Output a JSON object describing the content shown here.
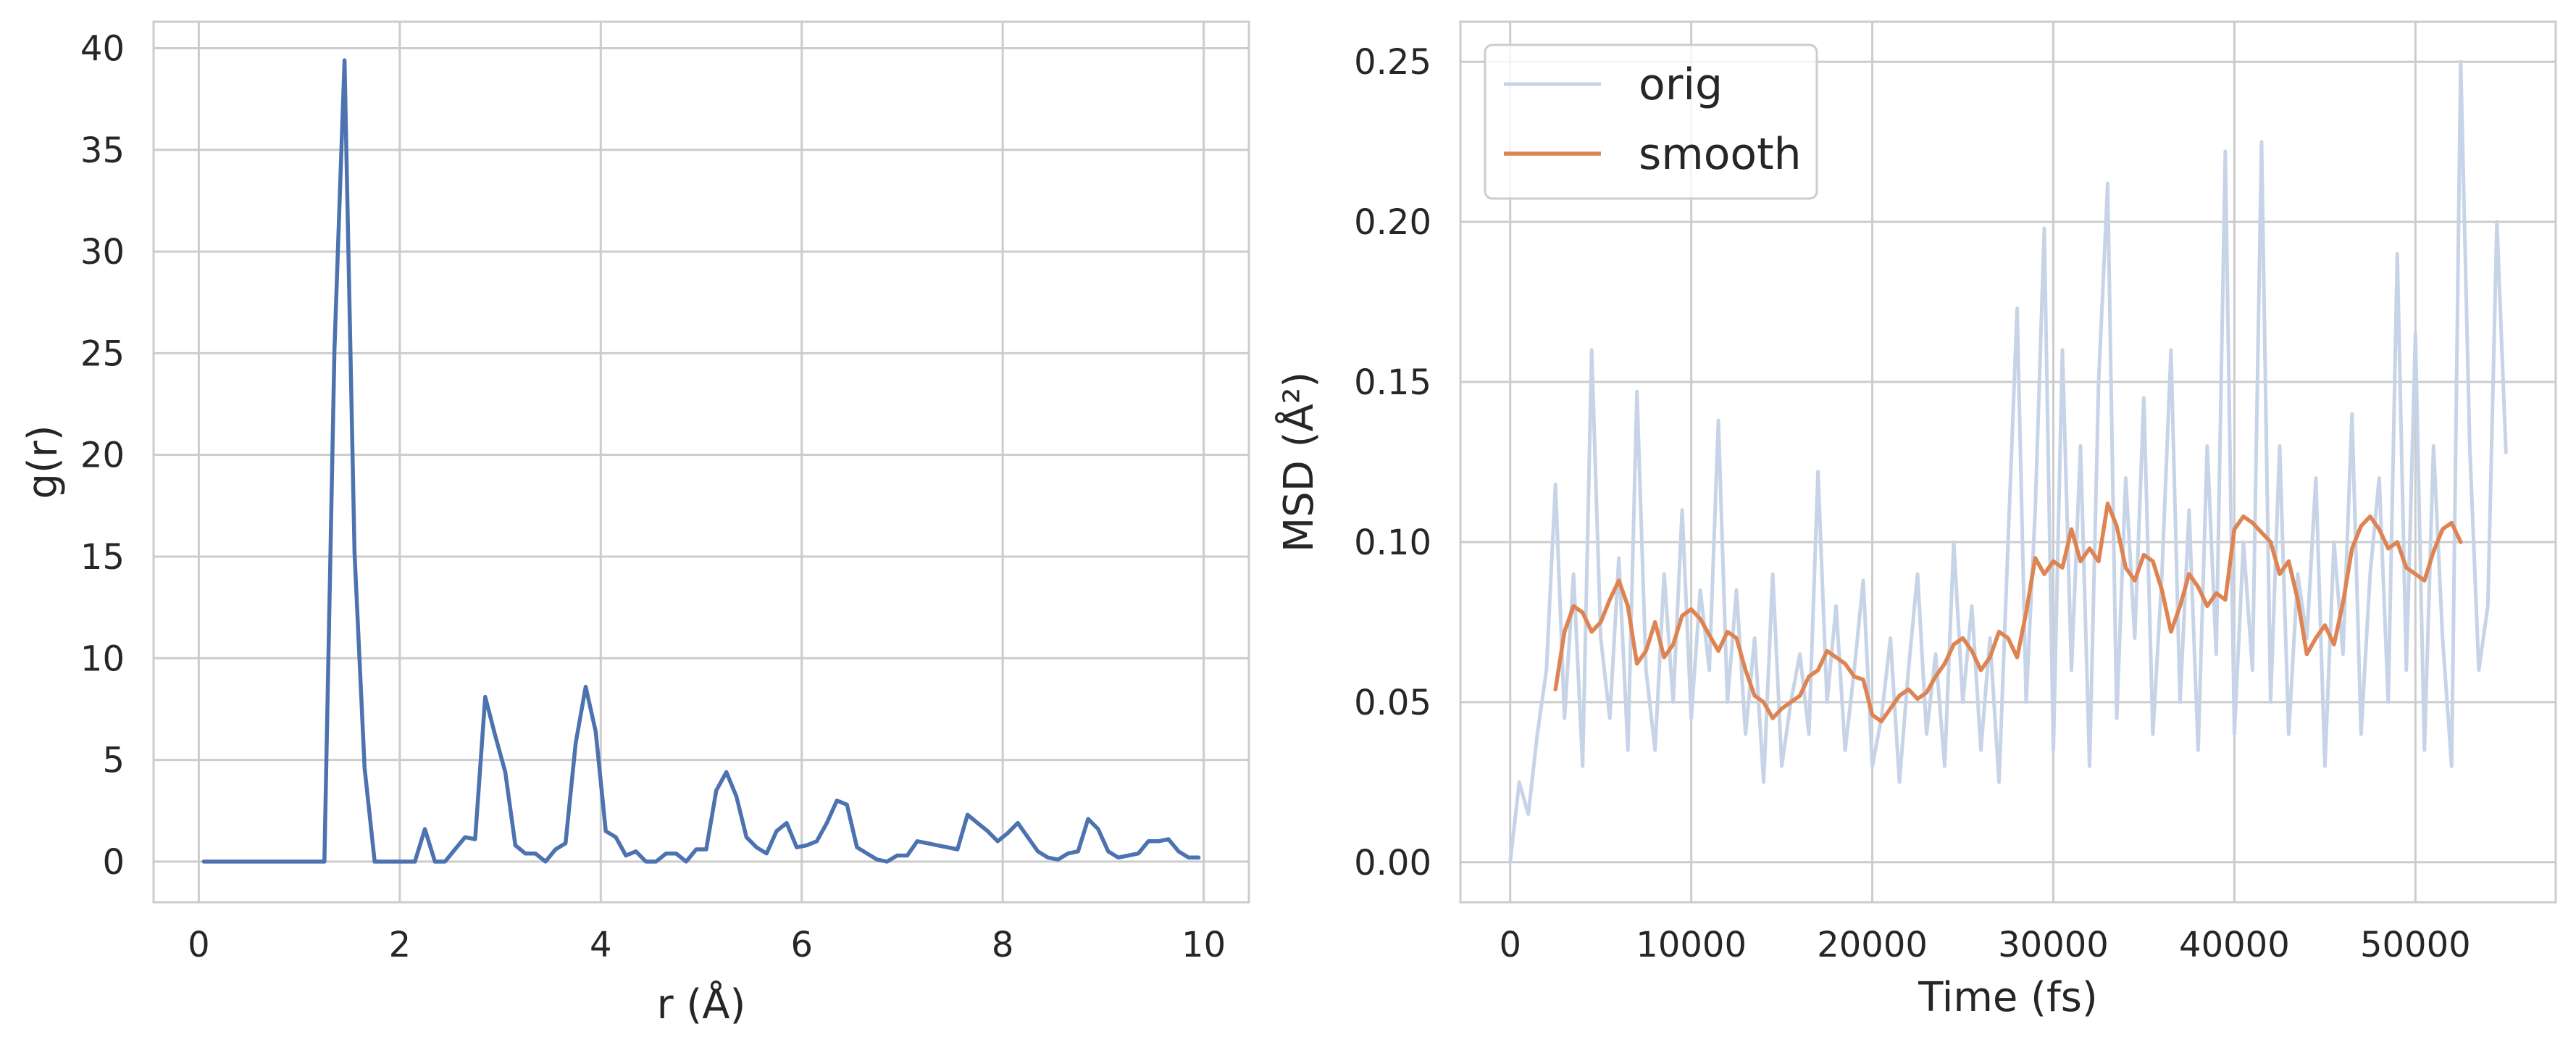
{
  "chart_data": [
    {
      "type": "line",
      "xlabel": "r (Å)",
      "ylabel": "g(r)",
      "xlim": [
        -0.45,
        10.45
      ],
      "ylim": [
        -2.0,
        41.3
      ],
      "xticks": [
        0,
        2,
        4,
        6,
        8,
        10
      ],
      "yticks": [
        0,
        5,
        10,
        15,
        20,
        25,
        30,
        35,
        40
      ],
      "xtick_labels": [
        "0",
        "2",
        "4",
        "6",
        "8",
        "10"
      ],
      "ytick_labels": [
        "0",
        "5",
        "10",
        "15",
        "20",
        "25",
        "30",
        "35",
        "40"
      ],
      "grid": true,
      "colors": {
        "line": "#4c72b0"
      },
      "series": [
        {
          "x": [
            0.05,
            0.15,
            0.25,
            0.35,
            0.45,
            0.55,
            0.65,
            0.75,
            0.85,
            0.95,
            1.05,
            1.15,
            1.25,
            1.35,
            1.45,
            1.55,
            1.65,
            1.75,
            1.85,
            1.95,
            2.05,
            2.15,
            2.25,
            2.35,
            2.45,
            2.55,
            2.65,
            2.75,
            2.85,
            2.95,
            3.05,
            3.15,
            3.25,
            3.35,
            3.45,
            3.55,
            3.65,
            3.75,
            3.85,
            3.95,
            4.05,
            4.15,
            4.25,
            4.35,
            4.45,
            4.55,
            4.65,
            4.75,
            4.85,
            4.95,
            5.05,
            5.15,
            5.25,
            5.35,
            5.45,
            5.55,
            5.65,
            5.75,
            5.85,
            5.95,
            6.05,
            6.15,
            6.25,
            6.35,
            6.45,
            6.55,
            6.65,
            6.75,
            6.85,
            6.95,
            7.05,
            7.15,
            7.25,
            7.35,
            7.45,
            7.55,
            7.65,
            7.75,
            7.85,
            7.95,
            8.05,
            8.15,
            8.25,
            8.35,
            8.45,
            8.55,
            8.65,
            8.75,
            8.85,
            8.95,
            9.05,
            9.15,
            9.25,
            9.35,
            9.45,
            9.55,
            9.65,
            9.75,
            9.85,
            9.95
          ],
          "y": [
            0,
            0,
            0,
            0,
            0,
            0,
            0,
            0,
            0,
            0,
            0,
            0,
            0,
            25.2,
            39.4,
            15.2,
            4.6,
            0,
            0,
            0,
            0,
            0,
            1.6,
            0,
            0,
            0.6,
            1.2,
            1.1,
            8.1,
            6.2,
            4.4,
            0.8,
            0.4,
            0.4,
            0,
            0.6,
            0.9,
            5.8,
            8.6,
            6.4,
            1.5,
            1.2,
            0.3,
            0.5,
            0,
            0,
            0.4,
            0.4,
            0,
            0.6,
            0.6,
            3.5,
            4.4,
            3.2,
            1.2,
            0.7,
            0.4,
            1.5,
            1.9,
            0.7,
            0.8,
            1.0,
            1.9,
            3.0,
            2.8,
            0.7,
            0.4,
            0.1,
            0,
            0.3,
            0.3,
            1.0,
            0.9,
            0.8,
            0.7,
            0.6,
            2.3,
            1.9,
            1.5,
            1.0,
            1.4,
            1.9,
            1.2,
            0.5,
            0.2,
            0.1,
            0.4,
            0.5,
            2.1,
            1.6,
            0.5,
            0.2,
            0.3,
            0.4,
            1.0,
            1.0,
            1.1,
            0.5,
            0.2,
            0.2
          ]
        }
      ]
    },
    {
      "type": "line",
      "xlabel": "Time (fs)",
      "ylabel": "MSD (Å²)",
      "xlim": [
        -2750,
        57750
      ],
      "ylim": [
        -0.0125,
        0.2625
      ],
      "xticks": [
        0,
        10000,
        20000,
        30000,
        40000,
        50000
      ],
      "yticks": [
        0.0,
        0.05,
        0.1,
        0.15,
        0.2,
        0.25
      ],
      "xtick_labels": [
        "0",
        "10000",
        "20000",
        "30000",
        "40000",
        "50000"
      ],
      "ytick_labels": [
        "0.00",
        "0.05",
        "0.10",
        "0.15",
        "0.20",
        "0.25"
      ],
      "grid": true,
      "legend_position": "upper left",
      "series": [
        {
          "name": "orig",
          "color": "#c7d4e8",
          "x": [
            0,
            500,
            1000,
            1500,
            2000,
            2500,
            3000,
            3500,
            4000,
            4500,
            5000,
            5500,
            6000,
            6500,
            7000,
            7500,
            8000,
            8500,
            9000,
            9500,
            10000,
            10500,
            11000,
            11500,
            12000,
            12500,
            13000,
            13500,
            14000,
            14500,
            15000,
            15500,
            16000,
            16500,
            17000,
            17500,
            18000,
            18500,
            19000,
            19500,
            20000,
            20500,
            21000,
            21500,
            22000,
            22500,
            23000,
            23500,
            24000,
            24500,
            25000,
            25500,
            26000,
            26500,
            27000,
            27500,
            28000,
            28500,
            29000,
            29500,
            30000,
            30500,
            31000,
            31500,
            32000,
            32500,
            33000,
            33500,
            34000,
            34500,
            35000,
            35500,
            36000,
            36500,
            37000,
            37500,
            38000,
            38500,
            39000,
            39500,
            40000,
            40500,
            41000,
            41500,
            42000,
            42500,
            43000,
            43500,
            44000,
            44500,
            45000,
            45500,
            46000,
            46500,
            47000,
            47500,
            48000,
            48500,
            49000,
            49500,
            50000,
            50500,
            51000,
            51500,
            52000,
            52500,
            53000,
            53500,
            54000,
            54500,
            55000
          ],
          "y": [
            0.0,
            0.025,
            0.015,
            0.04,
            0.06,
            0.118,
            0.045,
            0.09,
            0.03,
            0.16,
            0.07,
            0.045,
            0.095,
            0.035,
            0.147,
            0.06,
            0.035,
            0.09,
            0.05,
            0.11,
            0.045,
            0.085,
            0.06,
            0.138,
            0.05,
            0.085,
            0.04,
            0.07,
            0.025,
            0.09,
            0.03,
            0.05,
            0.065,
            0.04,
            0.122,
            0.05,
            0.08,
            0.035,
            0.06,
            0.088,
            0.03,
            0.045,
            0.07,
            0.025,
            0.06,
            0.09,
            0.04,
            0.065,
            0.03,
            0.1,
            0.05,
            0.08,
            0.035,
            0.07,
            0.025,
            0.1,
            0.173,
            0.05,
            0.11,
            0.198,
            0.035,
            0.16,
            0.06,
            0.13,
            0.03,
            0.15,
            0.212,
            0.045,
            0.12,
            0.07,
            0.145,
            0.04,
            0.09,
            0.16,
            0.05,
            0.11,
            0.035,
            0.13,
            0.065,
            0.222,
            0.04,
            0.1,
            0.06,
            0.225,
            0.05,
            0.13,
            0.04,
            0.09,
            0.07,
            0.12,
            0.03,
            0.1,
            0.065,
            0.14,
            0.04,
            0.09,
            0.12,
            0.05,
            0.19,
            0.06,
            0.165,
            0.035,
            0.13,
            0.07,
            0.03,
            0.25,
            0.13,
            0.06,
            0.08,
            0.2,
            0.128
          ]
        },
        {
          "name": "smooth",
          "color": "#dd8452",
          "x": [
            2500,
            3000,
            3500,
            4000,
            4500,
            5000,
            5500,
            6000,
            6500,
            7000,
            7500,
            8000,
            8500,
            9000,
            9500,
            10000,
            10500,
            11000,
            11500,
            12000,
            12500,
            13000,
            13500,
            14000,
            14500,
            15000,
            15500,
            16000,
            16500,
            17000,
            17500,
            18000,
            18500,
            19000,
            19500,
            20000,
            20500,
            21000,
            21500,
            22000,
            22500,
            23000,
            23500,
            24000,
            24500,
            25000,
            25500,
            26000,
            26500,
            27000,
            27500,
            28000,
            28500,
            29000,
            29500,
            30000,
            30500,
            31000,
            31500,
            32000,
            32500,
            33000,
            33500,
            34000,
            34500,
            35000,
            35500,
            36000,
            36500,
            37000,
            37500,
            38000,
            38500,
            39000,
            39500,
            40000,
            40500,
            41000,
            41500,
            42000,
            42500,
            43000,
            43500,
            44000,
            44500,
            45000,
            45500,
            46000,
            46500,
            47000,
            47500,
            48000,
            48500,
            49000,
            49500,
            50000,
            50500,
            51000,
            51500,
            52000,
            52500
          ],
          "y": [
            0.054,
            0.072,
            0.08,
            0.078,
            0.072,
            0.075,
            0.082,
            0.088,
            0.08,
            0.062,
            0.066,
            0.075,
            0.064,
            0.068,
            0.077,
            0.079,
            0.076,
            0.071,
            0.066,
            0.072,
            0.07,
            0.06,
            0.052,
            0.05,
            0.045,
            0.048,
            0.05,
            0.052,
            0.058,
            0.06,
            0.066,
            0.064,
            0.062,
            0.058,
            0.057,
            0.046,
            0.044,
            0.048,
            0.052,
            0.054,
            0.051,
            0.053,
            0.058,
            0.062,
            0.068,
            0.07,
            0.066,
            0.06,
            0.064,
            0.072,
            0.07,
            0.064,
            0.078,
            0.095,
            0.09,
            0.094,
            0.092,
            0.104,
            0.094,
            0.098,
            0.094,
            0.112,
            0.105,
            0.092,
            0.088,
            0.096,
            0.094,
            0.085,
            0.072,
            0.08,
            0.09,
            0.086,
            0.08,
            0.084,
            0.082,
            0.104,
            0.108,
            0.106,
            0.103,
            0.1,
            0.09,
            0.094,
            0.082,
            0.065,
            0.07,
            0.074,
            0.068,
            0.081,
            0.098,
            0.105,
            0.108,
            0.104,
            0.098,
            0.1,
            0.092,
            0.09,
            0.088,
            0.097,
            0.104,
            0.106,
            0.1
          ]
        }
      ]
    }
  ]
}
